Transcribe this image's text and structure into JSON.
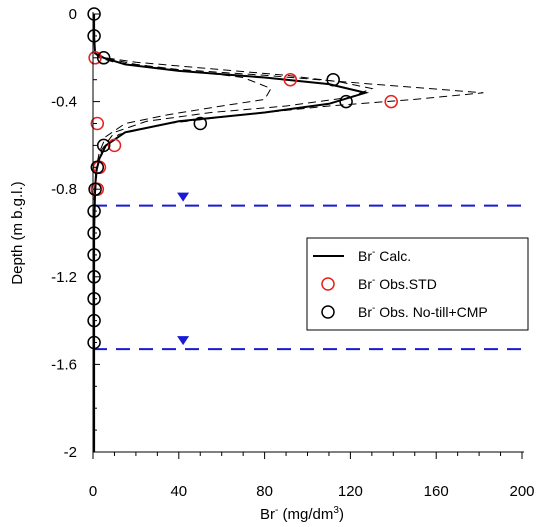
{
  "chart_data": {
    "type": "line",
    "xlabel": {
      "base": "Br",
      "sup1": "-",
      "mid": " (mg/dm",
      "sup2": "3",
      "end": ")"
    },
    "ylabel": "Depth (m b.g.l.)",
    "xlim": [
      0,
      200
    ],
    "ylim": [
      -2,
      0
    ],
    "x_ticks": [
      0,
      40,
      80,
      120,
      160,
      200
    ],
    "x_tick_labels": [
      "0",
      "40",
      "80",
      "120",
      "160",
      "200"
    ],
    "y_ticks": [
      0,
      -0.4,
      -0.8,
      -1.2,
      -1.6,
      -2
    ],
    "y_tick_labels": [
      "0",
      "-0.4",
      "-0.8",
      "-1.2",
      "-1.6",
      "-2"
    ],
    "legend": {
      "position": "right-middle",
      "entries": [
        {
          "base": "Br",
          "sup": "-",
          "rest": " Calc.",
          "style": "line",
          "color": "#000000"
        },
        {
          "base": "Br",
          "sup": "-",
          "rest": " Obs.STD",
          "style": "circle",
          "color": "#e8201c"
        },
        {
          "base": "Br",
          "sup": "-",
          "rest": " Obs. No-till+CMP",
          "style": "circle",
          "color": "#000000"
        }
      ]
    },
    "series": [
      {
        "style": "solid-line",
        "color": "#000000",
        "points": [
          [
            0.5,
            0
          ],
          [
            0.5,
            -0.1
          ],
          [
            1,
            -0.18
          ],
          [
            5,
            -0.2
          ],
          [
            15,
            -0.23
          ],
          [
            40,
            -0.26
          ],
          [
            80,
            -0.29
          ],
          [
            110,
            -0.32
          ],
          [
            127,
            -0.36
          ],
          [
            110,
            -0.41
          ],
          [
            80,
            -0.45
          ],
          [
            40,
            -0.49
          ],
          [
            15,
            -0.54
          ],
          [
            6,
            -0.6
          ],
          [
            3,
            -0.66
          ],
          [
            1.5,
            -0.72
          ],
          [
            1,
            -0.8
          ],
          [
            0.5,
            -1
          ],
          [
            0.5,
            -2
          ]
        ]
      },
      {
        "style": "dashed-line",
        "color": "#000000",
        "points": [
          [
            0.5,
            0
          ],
          [
            0.5,
            -0.1
          ],
          [
            1,
            -0.18
          ],
          [
            3,
            -0.2
          ],
          [
            10,
            -0.22
          ],
          [
            35,
            -0.25
          ],
          [
            80,
            -0.28
          ],
          [
            130,
            -0.32
          ],
          [
            163,
            -0.345
          ],
          [
            182,
            -0.36
          ],
          [
            150,
            -0.39
          ],
          [
            110,
            -0.42
          ],
          [
            70,
            -0.46
          ],
          [
            35,
            -0.5
          ],
          [
            12,
            -0.55
          ],
          [
            5,
            -0.62
          ],
          [
            2,
            -0.7
          ],
          [
            1,
            -0.8
          ],
          [
            0.5,
            -1
          ]
        ]
      },
      {
        "style": "dashed-line",
        "color": "#000000",
        "points": [
          [
            0.5,
            0
          ],
          [
            1,
            -0.18
          ],
          [
            6,
            -0.2
          ],
          [
            20,
            -0.22
          ],
          [
            55,
            -0.25
          ],
          [
            90,
            -0.28
          ],
          [
            115,
            -0.31
          ],
          [
            130,
            -0.34
          ],
          [
            120,
            -0.38
          ],
          [
            90,
            -0.42
          ],
          [
            55,
            -0.45
          ],
          [
            25,
            -0.49
          ],
          [
            10,
            -0.54
          ],
          [
            4,
            -0.62
          ],
          [
            2,
            -0.7
          ],
          [
            0.5,
            -0.9
          ]
        ]
      },
      {
        "style": "dashed-line",
        "color": "#000000",
        "points": [
          [
            0.5,
            0
          ],
          [
            1,
            -0.18
          ],
          [
            5,
            -0.2
          ],
          [
            20,
            -0.23
          ],
          [
            45,
            -0.26
          ],
          [
            70,
            -0.29
          ],
          [
            83,
            -0.34
          ],
          [
            80,
            -0.39
          ],
          [
            60,
            -0.42
          ],
          [
            35,
            -0.46
          ],
          [
            15,
            -0.5
          ],
          [
            6,
            -0.56
          ],
          [
            3,
            -0.63
          ],
          [
            1.5,
            -0.7
          ],
          [
            0.5,
            -0.85
          ]
        ]
      },
      {
        "name": "Br- Obs.STD",
        "style": "circles",
        "color": "#e8201c",
        "points": [
          [
            1,
            -0.2
          ],
          [
            92,
            -0.3
          ],
          [
            139,
            -0.4
          ],
          [
            2,
            -0.5
          ],
          [
            10,
            -0.6
          ],
          [
            3,
            -0.7
          ],
          [
            2,
            -0.8
          ]
        ]
      },
      {
        "name": "Br- Obs. No-till+CMP",
        "style": "circles",
        "color": "#000000",
        "points": [
          [
            0.5,
            0
          ],
          [
            0.5,
            -0.1
          ],
          [
            5,
            -0.2
          ],
          [
            112,
            -0.3
          ],
          [
            118,
            -0.4
          ],
          [
            50,
            -0.5
          ],
          [
            5,
            -0.6
          ],
          [
            2,
            -0.7
          ],
          [
            1,
            -0.8
          ],
          [
            0.5,
            -0.9
          ],
          [
            0.5,
            -1
          ],
          [
            0.5,
            -1.1
          ],
          [
            0.5,
            -1.2
          ],
          [
            0.5,
            -1.3
          ],
          [
            0.5,
            -1.4
          ],
          [
            0.5,
            -1.5
          ]
        ]
      }
    ],
    "water_table_lines": [
      {
        "y": -0.875,
        "color": "#1a1ad6",
        "marker_x": 42
      },
      {
        "y": -1.53,
        "color": "#1a1ad6",
        "marker_x": 42
      }
    ]
  }
}
